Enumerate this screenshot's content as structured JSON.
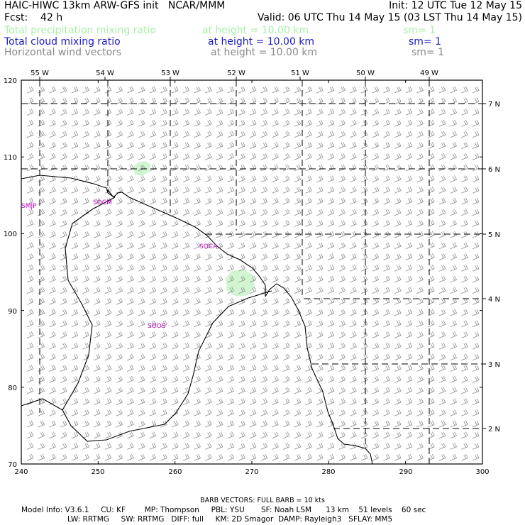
{
  "header": {
    "line1_left": "HAIC-HIWC 13km ARW-GFS init   NCAR/MMM",
    "line1_right": "Init: 12 UTC Tue 12 May 15",
    "fcst": "Fcst:    42 h",
    "valid": "Valid: 06 UTC Thu 14 May 15 (03 LST Thu 14 May 15)",
    "fields": [
      {
        "name": "Total precipitation mixing ratio",
        "height": "at height = 10.00 km",
        "sm": "sm= 1",
        "color": "#a8f0a8"
      },
      {
        "name": "Total cloud mixing ratio",
        "height": "at height = 10.00 km",
        "sm": "sm= 1",
        "color": "#1a1ac8"
      },
      {
        "name": "Horizontal wind vectors",
        "height": "at height = 10.00 km",
        "sm": "sm= 1",
        "color": "#8a8a8a"
      }
    ]
  },
  "map": {
    "x_ticks": [
      "240",
      "250",
      "260",
      "270",
      "280",
      "290",
      "300"
    ],
    "y_ticks": [
      "70",
      "80",
      "90",
      "100",
      "110",
      "120"
    ],
    "lon_labels": [
      "55 W",
      "54 W",
      "53 W",
      "52 W",
      "51 W",
      "50 W",
      "49 W"
    ],
    "lat_labels": [
      "7 N",
      "6 N",
      "5 N",
      "4 N",
      "3 N",
      "2 N"
    ],
    "stations": [
      "SMJP",
      "SOCM",
      "SOCA",
      "SOOS"
    ],
    "precip_color": "#d0f5d0"
  },
  "footer": {
    "barb_note": "BARB VECTORS:  FULL BARB = 10 kts",
    "model_line1": "Model Info: V3.6.1     CU: KF        MP: Thompson     PBL: YSU       SF: Noah LSM      13 km    51 levels    60 sec",
    "model_line2": "LW: RRTMG     SW: RRTMG   DIFF: full     KM: 2D Smagor  DAMP: Rayleigh3   SFLAY: MM5"
  }
}
